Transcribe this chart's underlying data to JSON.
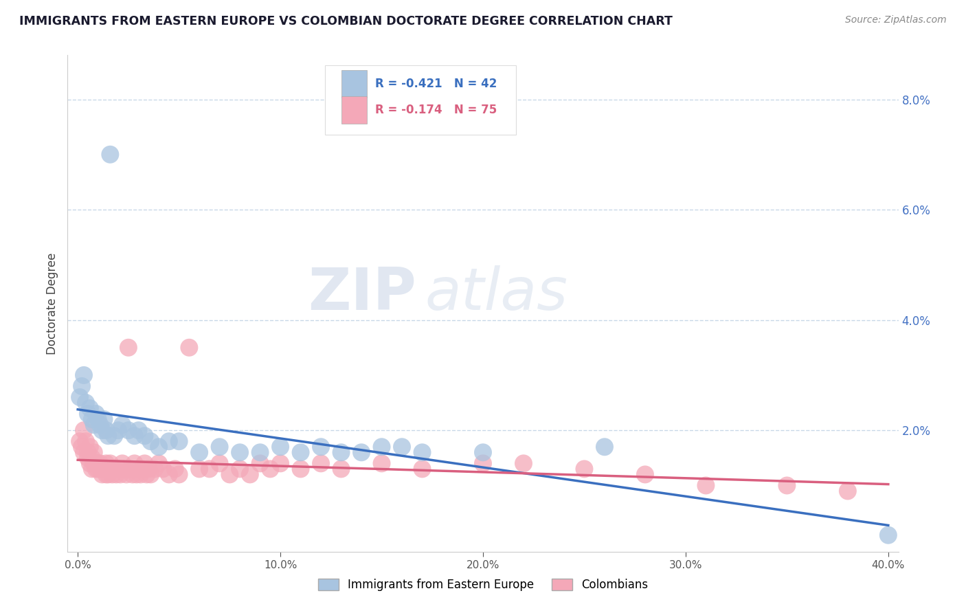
{
  "title": "IMMIGRANTS FROM EASTERN EUROPE VS COLOMBIAN DOCTORATE DEGREE CORRELATION CHART",
  "source": "Source: ZipAtlas.com",
  "ylabel": "Doctorate Degree",
  "legend_labels": [
    "Immigrants from Eastern Europe",
    "Colombians"
  ],
  "blue_R": -0.421,
  "blue_N": 42,
  "pink_R": -0.174,
  "pink_N": 75,
  "blue_color": "#a8c4e0",
  "pink_color": "#f4a8b8",
  "blue_line_color": "#3a6fbf",
  "pink_line_color": "#d95f7f",
  "blue_scatter": [
    [
      0.001,
      0.026
    ],
    [
      0.002,
      0.028
    ],
    [
      0.003,
      0.03
    ],
    [
      0.004,
      0.025
    ],
    [
      0.005,
      0.023
    ],
    [
      0.006,
      0.024
    ],
    [
      0.007,
      0.022
    ],
    [
      0.008,
      0.021
    ],
    [
      0.009,
      0.023
    ],
    [
      0.01,
      0.022
    ],
    [
      0.011,
      0.021
    ],
    [
      0.012,
      0.02
    ],
    [
      0.013,
      0.022
    ],
    [
      0.014,
      0.02
    ],
    [
      0.015,
      0.019
    ],
    [
      0.016,
      0.07
    ],
    [
      0.018,
      0.019
    ],
    [
      0.02,
      0.02
    ],
    [
      0.022,
      0.021
    ],
    [
      0.025,
      0.02
    ],
    [
      0.028,
      0.019
    ],
    [
      0.03,
      0.02
    ],
    [
      0.033,
      0.019
    ],
    [
      0.036,
      0.018
    ],
    [
      0.04,
      0.017
    ],
    [
      0.045,
      0.018
    ],
    [
      0.05,
      0.018
    ],
    [
      0.06,
      0.016
    ],
    [
      0.07,
      0.017
    ],
    [
      0.08,
      0.016
    ],
    [
      0.09,
      0.016
    ],
    [
      0.1,
      0.017
    ],
    [
      0.11,
      0.016
    ],
    [
      0.12,
      0.017
    ],
    [
      0.13,
      0.016
    ],
    [
      0.14,
      0.016
    ],
    [
      0.15,
      0.017
    ],
    [
      0.16,
      0.017
    ],
    [
      0.17,
      0.016
    ],
    [
      0.2,
      0.016
    ],
    [
      0.26,
      0.017
    ],
    [
      0.4,
      0.001
    ]
  ],
  "pink_scatter": [
    [
      0.001,
      0.018
    ],
    [
      0.002,
      0.017
    ],
    [
      0.003,
      0.02
    ],
    [
      0.003,
      0.016
    ],
    [
      0.004,
      0.018
    ],
    [
      0.005,
      0.016
    ],
    [
      0.005,
      0.015
    ],
    [
      0.006,
      0.014
    ],
    [
      0.006,
      0.017
    ],
    [
      0.007,
      0.015
    ],
    [
      0.007,
      0.013
    ],
    [
      0.008,
      0.014
    ],
    [
      0.008,
      0.016
    ],
    [
      0.009,
      0.014
    ],
    [
      0.009,
      0.013
    ],
    [
      0.01,
      0.014
    ],
    [
      0.01,
      0.013
    ],
    [
      0.011,
      0.014
    ],
    [
      0.012,
      0.013
    ],
    [
      0.012,
      0.012
    ],
    [
      0.013,
      0.013
    ],
    [
      0.014,
      0.014
    ],
    [
      0.014,
      0.012
    ],
    [
      0.015,
      0.013
    ],
    [
      0.015,
      0.012
    ],
    [
      0.016,
      0.014
    ],
    [
      0.017,
      0.013
    ],
    [
      0.017,
      0.012
    ],
    [
      0.018,
      0.013
    ],
    [
      0.019,
      0.012
    ],
    [
      0.02,
      0.013
    ],
    [
      0.021,
      0.012
    ],
    [
      0.022,
      0.014
    ],
    [
      0.023,
      0.013
    ],
    [
      0.024,
      0.012
    ],
    [
      0.025,
      0.035
    ],
    [
      0.026,
      0.013
    ],
    [
      0.027,
      0.012
    ],
    [
      0.028,
      0.014
    ],
    [
      0.029,
      0.012
    ],
    [
      0.03,
      0.013
    ],
    [
      0.031,
      0.012
    ],
    [
      0.032,
      0.013
    ],
    [
      0.033,
      0.014
    ],
    [
      0.034,
      0.012
    ],
    [
      0.035,
      0.013
    ],
    [
      0.036,
      0.012
    ],
    [
      0.038,
      0.013
    ],
    [
      0.04,
      0.014
    ],
    [
      0.042,
      0.013
    ],
    [
      0.045,
      0.012
    ],
    [
      0.048,
      0.013
    ],
    [
      0.05,
      0.012
    ],
    [
      0.055,
      0.035
    ],
    [
      0.06,
      0.013
    ],
    [
      0.065,
      0.013
    ],
    [
      0.07,
      0.014
    ],
    [
      0.075,
      0.012
    ],
    [
      0.08,
      0.013
    ],
    [
      0.085,
      0.012
    ],
    [
      0.09,
      0.014
    ],
    [
      0.095,
      0.013
    ],
    [
      0.1,
      0.014
    ],
    [
      0.11,
      0.013
    ],
    [
      0.12,
      0.014
    ],
    [
      0.13,
      0.013
    ],
    [
      0.15,
      0.014
    ],
    [
      0.17,
      0.013
    ],
    [
      0.2,
      0.014
    ],
    [
      0.22,
      0.014
    ],
    [
      0.25,
      0.013
    ],
    [
      0.28,
      0.012
    ],
    [
      0.31,
      0.01
    ],
    [
      0.35,
      0.01
    ],
    [
      0.38,
      0.009
    ]
  ],
  "xlim": [
    -0.005,
    0.405
  ],
  "ylim": [
    -0.002,
    0.088
  ],
  "xticks": [
    0.0,
    0.1,
    0.2,
    0.3,
    0.4
  ],
  "yticks": [
    0.02,
    0.04,
    0.06,
    0.08
  ],
  "watermark_zip": "ZIP",
  "watermark_atlas": "atlas",
  "background_color": "#ffffff",
  "grid_color": "#c8d8e8",
  "title_color": "#1a1a2e",
  "source_color": "#888888",
  "ytick_color": "#4472c4",
  "xtick_color": "#555555"
}
